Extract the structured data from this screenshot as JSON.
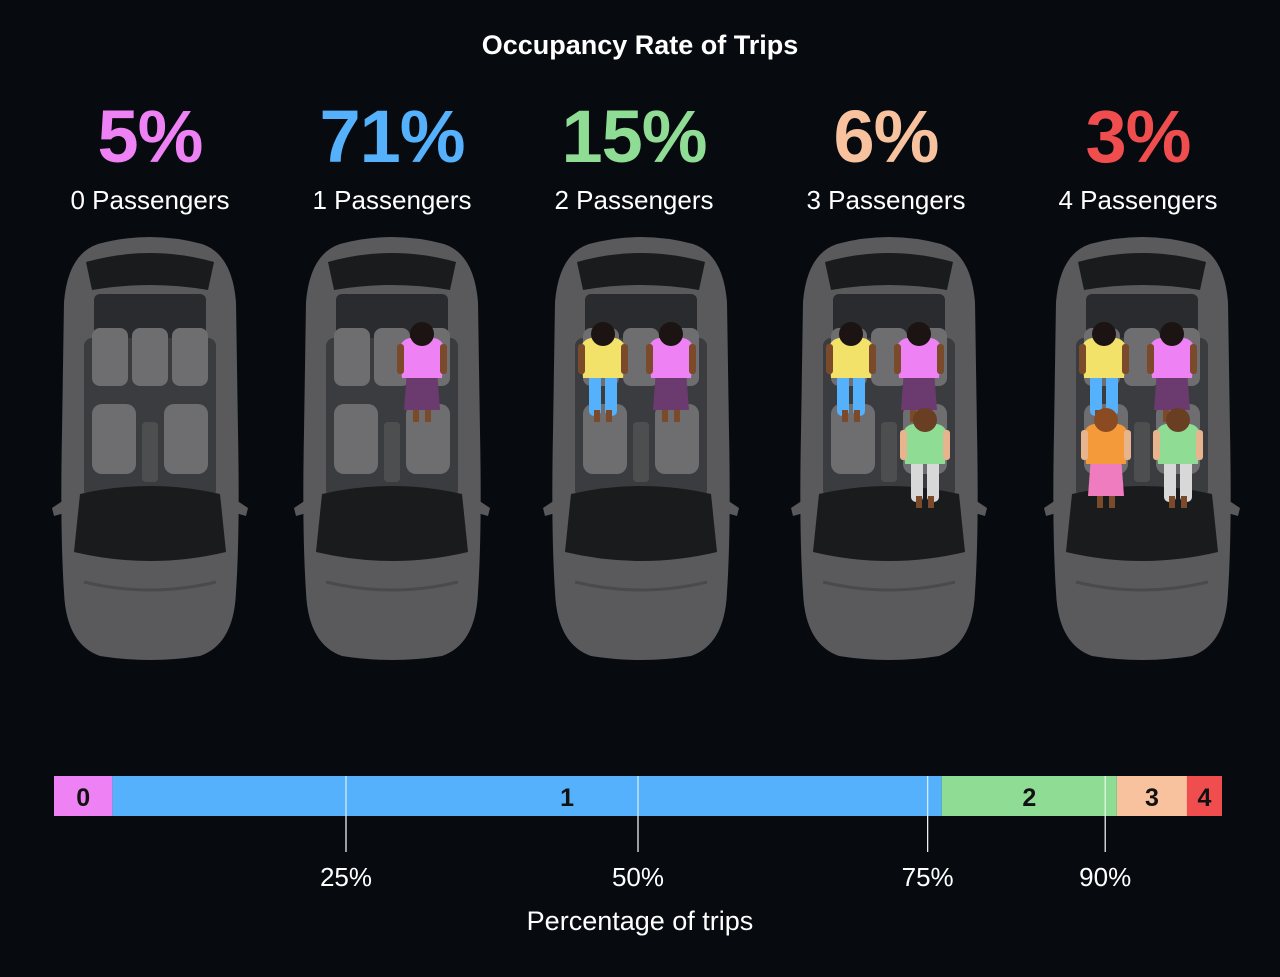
{
  "title": "Occupancy Rate of Trips",
  "colors": {
    "background": "#070b10",
    "c0": "#ee82f5",
    "c1": "#55b1fb",
    "c2": "#8fdd95",
    "c3": "#f7c29d",
    "c4": "#f04e4e",
    "car_body": "#5a5a5c",
    "car_glass": "#1a1b1d",
    "seat": "#6e6e70"
  },
  "groups": [
    {
      "pct_label": "5%",
      "label": "0 Passengers",
      "passengers": 0
    },
    {
      "pct_label": "71%",
      "label": "1 Passengers",
      "passengers": 1
    },
    {
      "pct_label": "15%",
      "label": "2 Passengers",
      "passengers": 2
    },
    {
      "pct_label": "6%",
      "label": "3 Passengers",
      "passengers": 3
    },
    {
      "pct_label": "3%",
      "label": "4 Passengers",
      "passengers": 4
    }
  ],
  "chart_data": {
    "type": "bar",
    "title": "Occupancy Rate of Trips",
    "xlabel": "Percentage of trips",
    "ylabel": "",
    "stacked": true,
    "orientation": "horizontal",
    "categories": [
      "0",
      "1",
      "2",
      "3",
      "4"
    ],
    "series_labels": [
      "0 Passengers",
      "1 Passengers",
      "2 Passengers",
      "3 Passengers",
      "4 Passengers"
    ],
    "values": [
      5,
      71,
      15,
      6,
      3
    ],
    "xlim": [
      0,
      100
    ],
    "ticks": [
      25,
      50,
      75,
      90
    ],
    "tick_labels": [
      "25%",
      "50%",
      "75%",
      "90%"
    ],
    "grid": false,
    "legend": "none"
  }
}
